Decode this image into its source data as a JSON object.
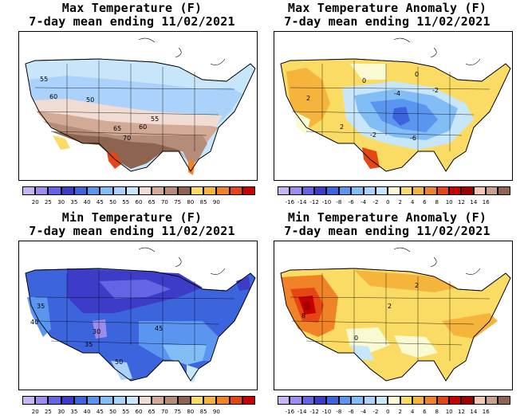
{
  "panels": [
    {
      "id": "max-temp",
      "title_line1": "Max Temperature (F)",
      "title_line2": "7-day mean ending 11/02/2021",
      "colorbar": {
        "colors": [
          "#c8b4f0",
          "#9c8cf0",
          "#6464e6",
          "#3c3cc8",
          "#3c64dc",
          "#5a96f0",
          "#82bef5",
          "#aad2fa",
          "#c8e6fa",
          "#f0dcd2",
          "#d2aa96",
          "#b48c78",
          "#8c6450",
          "#fadc64",
          "#f5b43c",
          "#f08228",
          "#e64614",
          "#c80000"
        ],
        "labels": [
          "20",
          "25",
          "30",
          "35",
          "40",
          "45",
          "50",
          "55",
          "60",
          "65",
          "70",
          "75",
          "80",
          "85",
          "90"
        ]
      },
      "contour_labels": [
        {
          "text": "55"
        },
        {
          "text": "60"
        },
        {
          "text": "50"
        },
        {
          "text": "55"
        },
        {
          "text": "65"
        },
        {
          "text": "60"
        },
        {
          "text": "70"
        }
      ]
    },
    {
      "id": "max-anom",
      "title_line1": "Max Temperature Anomaly (F)",
      "title_line2": "7-day mean ending 11/02/2021",
      "colorbar": {
        "colors": [
          "#c8b4f0",
          "#9c8cf0",
          "#6464e6",
          "#3c3cc8",
          "#3c64dc",
          "#5a96f0",
          "#82bef5",
          "#aad2fa",
          "#c8e6fa",
          "#fafad2",
          "#fadc64",
          "#f5b43c",
          "#f08228",
          "#e64614",
          "#c80000",
          "#a00000",
          "#f0c8b4",
          "#c8a08c",
          "#8c6450"
        ],
        "labels": [
          "-16",
          "-14",
          "-12",
          "-10",
          "-8",
          "-6",
          "-4",
          "-2",
          "0",
          "2",
          "4",
          "6",
          "8",
          "10",
          "12",
          "14",
          "16"
        ]
      },
      "contour_labels": [
        {
          "text": "0"
        },
        {
          "text": "2"
        },
        {
          "text": "-4"
        },
        {
          "text": "0"
        },
        {
          "text": "2"
        },
        {
          "text": "-2"
        },
        {
          "text": "-6"
        },
        {
          "text": "-2"
        }
      ]
    },
    {
      "id": "min-temp",
      "title_line1": "Min Temperature (F)",
      "title_line2": "7-day mean ending 11/02/2021",
      "colorbar": {
        "colors": [
          "#c8b4f0",
          "#9c8cf0",
          "#6464e6",
          "#3c3cc8",
          "#3c64dc",
          "#5a96f0",
          "#82bef5",
          "#aad2fa",
          "#c8e6fa",
          "#f0dcd2",
          "#d2aa96",
          "#b48c78",
          "#8c6450",
          "#fadc64",
          "#f5b43c",
          "#f08228",
          "#e64614",
          "#c80000"
        ],
        "labels": [
          "20",
          "25",
          "30",
          "35",
          "40",
          "45",
          "50",
          "55",
          "60",
          "65",
          "70",
          "75",
          "80",
          "85",
          "90"
        ]
      },
      "contour_labels": [
        {
          "text": "35"
        },
        {
          "text": "40"
        },
        {
          "text": "30"
        },
        {
          "text": "35"
        },
        {
          "text": "45"
        },
        {
          "text": "50"
        }
      ]
    },
    {
      "id": "min-anom",
      "title_line1": "Min Temperature Anomaly (F)",
      "title_line2": "7-day mean ending 11/02/2021",
      "colorbar": {
        "colors": [
          "#c8b4f0",
          "#9c8cf0",
          "#6464e6",
          "#3c3cc8",
          "#3c64dc",
          "#5a96f0",
          "#82bef5",
          "#aad2fa",
          "#c8e6fa",
          "#fafad2",
          "#fadc64",
          "#f5b43c",
          "#f08228",
          "#e64614",
          "#c80000",
          "#a00000",
          "#f0c8b4",
          "#c8a08c",
          "#8c6450"
        ],
        "labels": [
          "-16",
          "-14",
          "-12",
          "-10",
          "-8",
          "-6",
          "-4",
          "-2",
          "0",
          "2",
          "4",
          "6",
          "8",
          "10",
          "12",
          "14",
          "16"
        ]
      },
      "contour_labels": [
        {
          "text": "8"
        },
        {
          "text": "2"
        },
        {
          "text": "2"
        },
        {
          "text": "0"
        }
      ]
    }
  ]
}
